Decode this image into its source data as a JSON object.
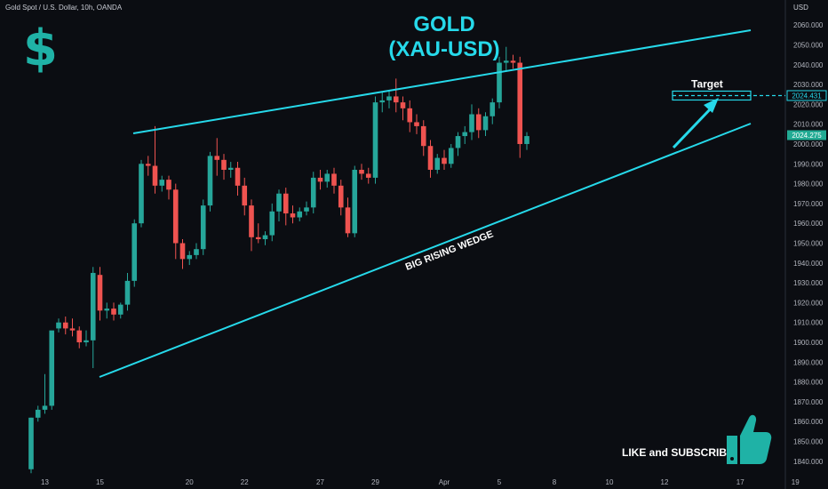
{
  "header": {
    "title": "Gold Spot / U.S. Dollar, 10h, OANDA",
    "currency": "USD"
  },
  "overlay": {
    "title_line1": "GOLD",
    "title_line2": "(XAU-USD)",
    "dollar_icon": "dollar-sign-icon",
    "like_text": "LIKE and SUBSCRIBE",
    "thumb_icon": "thumbs-up-icon",
    "target_label": "Target",
    "wedge_label": "BIG RISING WEDGE",
    "price_tag_target": "2024.431",
    "price_tag_current": "2024.275"
  },
  "colors": {
    "up": "#26a69a",
    "down": "#ef5350",
    "accent": "#26d9ea",
    "bg": "#0b0d12"
  },
  "chart_data": {
    "type": "candlestick",
    "ylim": [
      1835,
      2065
    ],
    "y_ticks": [
      1840,
      1850,
      1860,
      1870,
      1880,
      1890,
      1900,
      1910,
      1920,
      1930,
      1940,
      1950,
      1960,
      1970,
      1980,
      1990,
      2000,
      2010,
      2020,
      2030,
      2040,
      2050,
      2060
    ],
    "x_ticks": [
      {
        "label": "13",
        "i": 2
      },
      {
        "label": "15",
        "i": 10
      },
      {
        "label": "20",
        "i": 23
      },
      {
        "label": "22",
        "i": 31
      },
      {
        "label": "27",
        "i": 42
      },
      {
        "label": "29",
        "i": 50
      },
      {
        "label": "Apr",
        "i": 60
      },
      {
        "label": "5",
        "i": 68
      },
      {
        "label": "8",
        "i": 76
      },
      {
        "label": "10",
        "i": 84
      },
      {
        "label": "12",
        "i": 92
      },
      {
        "label": "17",
        "i": 103
      },
      {
        "label": "19",
        "i": 111
      }
    ],
    "candles": [
      {
        "o": 1836,
        "h": 1862,
        "c": 1862,
        "l": 1834
      },
      {
        "o": 1862,
        "h": 1868,
        "c": 1866,
        "l": 1860
      },
      {
        "o": 1866,
        "h": 1884,
        "c": 1868,
        "l": 1864
      },
      {
        "o": 1868,
        "h": 1905,
        "c": 1906,
        "l": 1866
      },
      {
        "o": 1907,
        "h": 1912,
        "c": 1910,
        "l": 1905
      },
      {
        "o": 1910,
        "h": 1913,
        "c": 1907,
        "l": 1904
      },
      {
        "o": 1907,
        "h": 1912,
        "c": 1906,
        "l": 1903
      },
      {
        "o": 1906,
        "h": 1908,
        "c": 1900,
        "l": 1897
      },
      {
        "o": 1900,
        "h": 1906,
        "c": 1901,
        "l": 1898
      },
      {
        "o": 1901,
        "h": 1938,
        "c": 1935,
        "l": 1887
      },
      {
        "o": 1934,
        "h": 1938,
        "c": 1916,
        "l": 1911
      },
      {
        "o": 1916,
        "h": 1920,
        "c": 1917,
        "l": 1912
      },
      {
        "o": 1917,
        "h": 1920,
        "c": 1914,
        "l": 1911
      },
      {
        "o": 1914,
        "h": 1920,
        "c": 1919,
        "l": 1912
      },
      {
        "o": 1919,
        "h": 1935,
        "c": 1931,
        "l": 1916
      },
      {
        "o": 1931,
        "h": 1962,
        "c": 1960,
        "l": 1928
      },
      {
        "o": 1960,
        "h": 1992,
        "c": 1990,
        "l": 1958
      },
      {
        "o": 1990,
        "h": 1994,
        "c": 1989,
        "l": 1984
      },
      {
        "o": 1989,
        "h": 2009,
        "c": 1979,
        "l": 1975
      },
      {
        "o": 1979,
        "h": 1984,
        "c": 1982,
        "l": 1976
      },
      {
        "o": 1982,
        "h": 1984,
        "c": 1977,
        "l": 1972
      },
      {
        "o": 1977,
        "h": 1980,
        "c": 1950,
        "l": 1942
      },
      {
        "o": 1950,
        "h": 1952,
        "c": 1942,
        "l": 1937
      },
      {
        "o": 1942,
        "h": 1946,
        "c": 1944,
        "l": 1939
      },
      {
        "o": 1944,
        "h": 1950,
        "c": 1947,
        "l": 1942
      },
      {
        "o": 1947,
        "h": 1972,
        "c": 1969,
        "l": 1944
      },
      {
        "o": 1969,
        "h": 1996,
        "c": 1994,
        "l": 1966
      },
      {
        "o": 1994,
        "h": 2003,
        "c": 1992,
        "l": 1984
      },
      {
        "o": 1992,
        "h": 1995,
        "c": 1987,
        "l": 1982
      },
      {
        "o": 1987,
        "h": 1991,
        "c": 1988,
        "l": 1983
      },
      {
        "o": 1988,
        "h": 1991,
        "c": 1979,
        "l": 1974
      },
      {
        "o": 1979,
        "h": 1983,
        "c": 1969,
        "l": 1964
      },
      {
        "o": 1969,
        "h": 1972,
        "c": 1953,
        "l": 1946
      },
      {
        "o": 1953,
        "h": 1960,
        "c": 1952,
        "l": 1950
      },
      {
        "o": 1952,
        "h": 1956,
        "c": 1954,
        "l": 1949
      },
      {
        "o": 1954,
        "h": 1970,
        "c": 1966,
        "l": 1951
      },
      {
        "o": 1966,
        "h": 1977,
        "c": 1975,
        "l": 1961
      },
      {
        "o": 1975,
        "h": 1978,
        "c": 1965,
        "l": 1959
      },
      {
        "o": 1965,
        "h": 1969,
        "c": 1963,
        "l": 1960
      },
      {
        "o": 1963,
        "h": 1968,
        "c": 1966,
        "l": 1961
      },
      {
        "o": 1966,
        "h": 1971,
        "c": 1968,
        "l": 1964
      },
      {
        "o": 1968,
        "h": 1986,
        "c": 1983,
        "l": 1965
      },
      {
        "o": 1983,
        "h": 1987,
        "c": 1981,
        "l": 1977
      },
      {
        "o": 1981,
        "h": 1987,
        "c": 1985,
        "l": 1978
      },
      {
        "o": 1985,
        "h": 1988,
        "c": 1979,
        "l": 1975
      },
      {
        "o": 1979,
        "h": 1982,
        "c": 1968,
        "l": 1964
      },
      {
        "o": 1968,
        "h": 1973,
        "c": 1955,
        "l": 1953
      },
      {
        "o": 1955,
        "h": 1989,
        "c": 1987,
        "l": 1953
      },
      {
        "o": 1987,
        "h": 1990,
        "c": 1985,
        "l": 1982
      },
      {
        "o": 1985,
        "h": 1988,
        "c": 1983,
        "l": 1980
      },
      {
        "o": 1983,
        "h": 2024,
        "c": 2021,
        "l": 1980
      },
      {
        "o": 2021,
        "h": 2026,
        "c": 2022,
        "l": 2016
      },
      {
        "o": 2022,
        "h": 2027,
        "c": 2024,
        "l": 2018
      },
      {
        "o": 2024,
        "h": 2033,
        "c": 2021,
        "l": 2016
      },
      {
        "o": 2021,
        "h": 2024,
        "c": 2018,
        "l": 2012
      },
      {
        "o": 2018,
        "h": 2022,
        "c": 2011,
        "l": 2006
      },
      {
        "o": 2011,
        "h": 2015,
        "c": 2009,
        "l": 2005
      },
      {
        "o": 2009,
        "h": 2012,
        "c": 1999,
        "l": 1994
      },
      {
        "o": 1999,
        "h": 2002,
        "c": 1987,
        "l": 1983
      },
      {
        "o": 1987,
        "h": 1995,
        "c": 1993,
        "l": 1985
      },
      {
        "o": 1993,
        "h": 1997,
        "c": 1990,
        "l": 1987
      },
      {
        "o": 1990,
        "h": 2000,
        "c": 1998,
        "l": 1988
      },
      {
        "o": 1998,
        "h": 2006,
        "c": 2004,
        "l": 1994
      },
      {
        "o": 2004,
        "h": 2009,
        "c": 2006,
        "l": 2000
      },
      {
        "o": 2006,
        "h": 2020,
        "c": 2015,
        "l": 2002
      },
      {
        "o": 2015,
        "h": 2018,
        "c": 2007,
        "l": 2003
      },
      {
        "o": 2007,
        "h": 2016,
        "c": 2014,
        "l": 2004
      },
      {
        "o": 2014,
        "h": 2023,
        "c": 2021,
        "l": 2010
      },
      {
        "o": 2021,
        "h": 2044,
        "c": 2041,
        "l": 2018
      },
      {
        "o": 2041,
        "h": 2049,
        "c": 2042,
        "l": 2037
      },
      {
        "o": 2042,
        "h": 2045,
        "c": 2041,
        "l": 2038
      },
      {
        "o": 2041,
        "h": 2044,
        "c": 2000,
        "l": 1993
      },
      {
        "o": 2000,
        "h": 2006,
        "c": 2004,
        "l": 1997
      }
    ]
  }
}
